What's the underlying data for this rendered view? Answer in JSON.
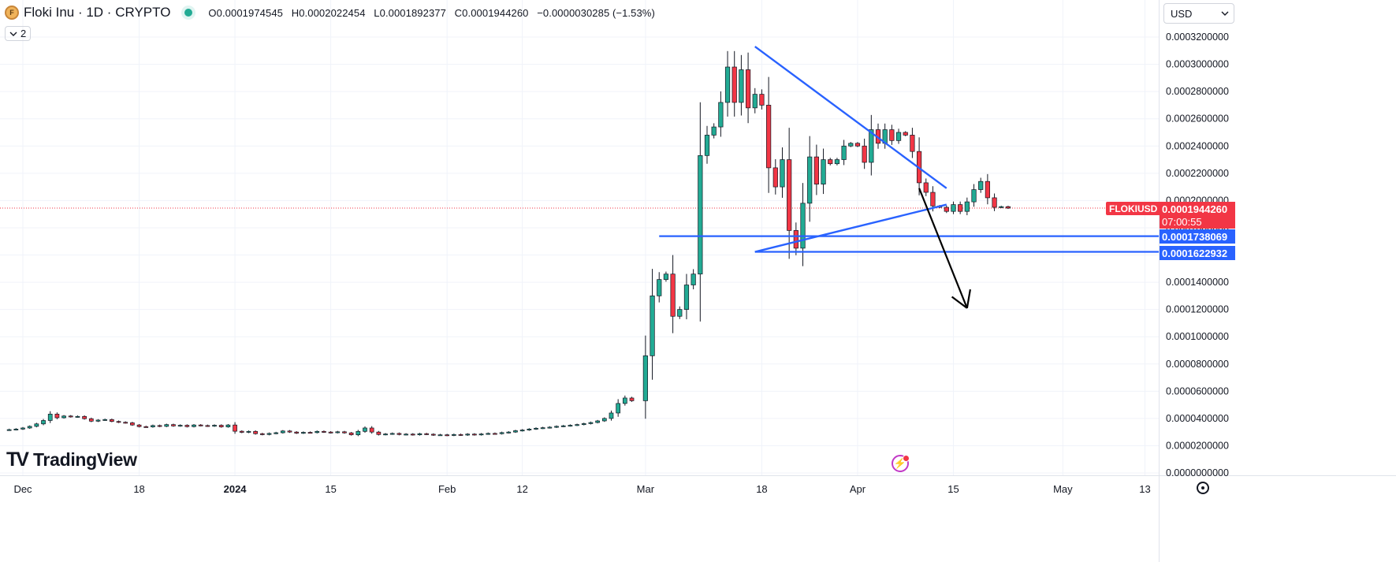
{
  "header": {
    "symbol": "Floki Inu · 1D · CRYPTO",
    "logo_icon": "floki-logo-icon",
    "o_label": "O",
    "o_value": "0.0001974545",
    "h_label": "H",
    "h_value": "0.0002022454",
    "l_label": "L",
    "l_value": "0.0001892377",
    "c_label": "C",
    "c_value": "0.0001944260",
    "change": "−0.0000030285 (−1.53%)"
  },
  "indicators_toggle": {
    "icon": "chevron-down-icon",
    "count": "2"
  },
  "currency_selector": {
    "value": "USD",
    "icon": "chevron-down-icon"
  },
  "watermark": {
    "logo": "TV",
    "text": "TradingView"
  },
  "price_tags": {
    "symbol_label": "FLOKIUSD",
    "last_price": "0.0001944260",
    "countdown": "07:00:55",
    "level_1": "0.0001738069",
    "level_2": "0.0001622932"
  },
  "colors": {
    "up": "#22ab94",
    "down": "#f23645",
    "drawing": "#2962ff",
    "last_price_line": "#f23645",
    "arrow": "#000000"
  },
  "chart_data": {
    "type": "candlestick",
    "timeframe": "1D",
    "y_ticks": [
      "0.0003200000",
      "0.0003000000",
      "0.0002800000",
      "0.0002600000",
      "0.0002400000",
      "0.0002200000",
      "0.0002000000",
      "0.0001800000",
      "0.0001600000",
      "0.0001400000",
      "0.0001200000",
      "0.0001000000",
      "0.0000800000",
      "0.0000600000",
      "0.0000400000",
      "0.0000200000",
      "0.0000000000"
    ],
    "ylim": [
      0.0,
      0.00032
    ],
    "x_ticks": [
      {
        "label": "Dec",
        "day": 0,
        "bold": false
      },
      {
        "label": "18",
        "day": 17,
        "bold": false
      },
      {
        "label": "2024",
        "day": 31,
        "bold": true
      },
      {
        "label": "15",
        "day": 45,
        "bold": false
      },
      {
        "label": "Feb",
        "day": 62,
        "bold": false
      },
      {
        "label": "12",
        "day": 73,
        "bold": false
      },
      {
        "label": "Mar",
        "day": 91,
        "bold": false
      },
      {
        "label": "18",
        "day": 108,
        "bold": false
      },
      {
        "label": "Apr",
        "day": 122,
        "bold": false
      },
      {
        "label": "15",
        "day": 136,
        "bold": false
      },
      {
        "label": "May",
        "day": 152,
        "bold": false
      },
      {
        "label": "13",
        "day": 164,
        "bold": false
      }
    ],
    "candle_groups": [
      {
        "start_day": -3,
        "start_close": 3.15e-05,
        "closes": [
          3.18e-05,
          3.22e-05,
          3.3e-05,
          3.42e-05,
          3.6e-05,
          3.85e-05,
          4.32e-05,
          4.05e-05,
          4.18e-05,
          4.12e-05,
          4.15e-05,
          3.98e-05,
          3.8e-05,
          3.88e-05,
          3.92e-05,
          3.78e-05,
          3.72e-05,
          3.68e-05,
          3.52e-05,
          3.4e-05,
          3.38e-05,
          3.48e-05,
          3.42e-05,
          3.55e-05,
          3.45e-05,
          3.5e-05,
          3.4e-05,
          3.52e-05,
          3.48e-05,
          3.44e-05,
          3.5e-05,
          3.38e-05,
          3.52e-05,
          3.06e-05,
          2.98e-05,
          3.05e-05,
          2.88e-05,
          2.82e-05,
          2.9e-05,
          2.95e-05,
          3.08e-05,
          3e-05,
          2.92e-05,
          2.98e-05,
          2.96e-05,
          3.05e-05,
          3e-05,
          2.96e-05,
          3.02e-05,
          2.94e-05,
          2.8e-05,
          3.05e-05,
          3.3e-05,
          3e-05,
          2.82e-05,
          2.86e-05,
          2.9e-05,
          2.82e-05,
          2.85e-05,
          2.8e-05,
          2.88e-05,
          2.84e-05,
          2.78e-05,
          2.8e-05,
          2.76e-05,
          2.82e-05,
          2.78e-05,
          2.85e-05,
          2.8e-05,
          2.86e-05,
          2.9e-05,
          2.88e-05,
          2.96e-05,
          3e-05,
          3.1e-05,
          3.15e-05,
          3.22e-05,
          3.28e-05,
          3.32e-05,
          3.36e-05,
          3.42e-05,
          3.46e-05,
          3.5e-05,
          3.55e-05,
          3.62e-05,
          3.7e-05,
          3.82e-05,
          4e-05,
          4.4e-05,
          5.1e-05,
          5.5e-05,
          5.3e-05
        ]
      },
      {
        "start_day": 90,
        "start_close": 5.3e-05,
        "closes": [
          8.6e-05,
          0.00013,
          0.000142,
          0.000146,
          0.000115,
          0.00012,
          0.000138,
          0.000146,
          0.000233,
          0.000248,
          0.000254,
          0.000272,
          0.000298,
          0.000272,
          0.000296,
          0.000268,
          0.000278,
          0.00027,
          0.000224,
          0.00021,
          0.00023,
          0.000178,
          0.000165,
          0.000198,
          0.000232,
          0.000212,
          0.00023,
          0.000227,
          0.00023,
          0.00024,
          0.000242,
          0.00024,
          0.000228,
          0.000252,
          0.000242,
          0.000252,
          0.000244,
          0.00025,
          0.000248,
          0.000236,
          0.000213,
          0.000206,
          0.000196,
          0.000195,
          0.000192,
          0.000197,
          0.000192,
          0.000199,
          0.000208,
          0.000214,
          0.000202,
          0.000195,
          0.0001955,
          0.0001944
        ]
      }
    ],
    "last_price": 0.000194426,
    "horizontal_levels": [
      {
        "value": 0.0001738069,
        "from_day": 93,
        "label": "0.0001738069"
      },
      {
        "value": 0.0001622932,
        "from_day": 107,
        "label": "0.0001622932"
      }
    ],
    "trendlines": [
      {
        "name": "upper",
        "p1": {
          "day": 107,
          "y": 0.000313
        },
        "p2": {
          "day": 135,
          "y": 0.000209
        }
      },
      {
        "name": "lower",
        "p1": {
          "day": 107,
          "y": 0.0001622932
        },
        "p2": {
          "day": 135,
          "y": 0.000197
        }
      }
    ],
    "projection_arrow": {
      "from": {
        "day": 131,
        "y": 0.000209
      },
      "to": {
        "day": 138,
        "y": 0.000121
      }
    }
  }
}
